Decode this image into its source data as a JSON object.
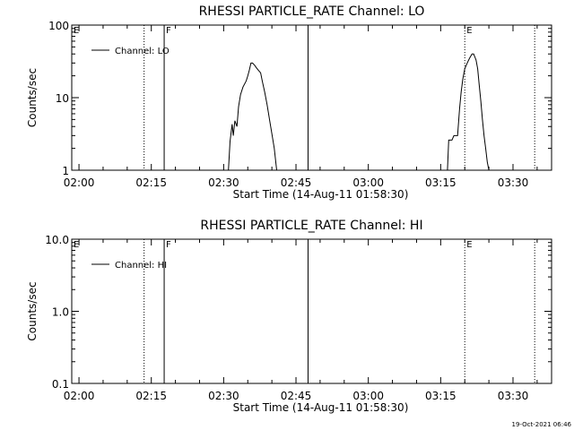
{
  "footer": {
    "timestamp": "19-Oct-2021 06:46"
  },
  "chart_data": [
    {
      "type": "line",
      "title": "RHESSI PARTICLE_RATE Channel: LO",
      "xlabel": "Start Time (14-Aug-11 01:58:30)",
      "ylabel": "Counts/sec",
      "yscale": "log",
      "xlim": [
        "01:58:30",
        "03:38:00"
      ],
      "ylim": [
        1,
        100
      ],
      "xticks": [
        "02:00",
        "02:15",
        "02:30",
        "02:45",
        "03:00",
        "03:15",
        "03:30"
      ],
      "yticks": [
        "1",
        "10",
        "100"
      ],
      "legend": {
        "position": "top-left",
        "entries": [
          "Channel: LO"
        ]
      },
      "series": [
        {
          "name": "Channel: LO",
          "segments": [
            [
              [
                "02:31:00",
                1.0
              ],
              [
                "02:31:20",
                2.5
              ],
              [
                "02:31:45",
                4.3
              ],
              [
                "02:32:00",
                3.0
              ],
              [
                "02:32:20",
                4.8
              ],
              [
                "02:32:45",
                4.0
              ],
              [
                "02:33:05",
                7.5
              ],
              [
                "02:33:30",
                11
              ],
              [
                "02:34:00",
                14
              ],
              [
                "02:34:40",
                17
              ],
              [
                "02:35:00",
                20
              ],
              [
                "02:35:20",
                24
              ],
              [
                "02:35:40",
                30
              ],
              [
                "02:36:00",
                30
              ],
              [
                "02:36:25",
                28
              ],
              [
                "02:36:45",
                26
              ],
              [
                "02:37:10",
                24
              ],
              [
                "02:37:40",
                22
              ],
              [
                "02:38:00",
                17
              ],
              [
                "02:38:30",
                12
              ],
              [
                "02:39:00",
                8
              ],
              [
                "02:39:30",
                5
              ],
              [
                "02:40:00",
                3.2
              ],
              [
                "02:40:30",
                2.0
              ],
              [
                "02:41:00",
                1.0
              ]
            ],
            [
              [
                "03:16:25",
                1.0
              ],
              [
                "03:16:40",
                2.6
              ],
              [
                "03:17:20",
                2.6
              ],
              [
                "03:17:45",
                3.0
              ],
              [
                "03:18:30",
                3.0
              ],
              [
                "03:18:55",
                7
              ],
              [
                "03:19:15",
                12
              ],
              [
                "03:19:35",
                18
              ],
              [
                "03:20:00",
                25
              ],
              [
                "03:20:30",
                30
              ],
              [
                "03:21:00",
                35
              ],
              [
                "03:21:30",
                40
              ],
              [
                "03:21:50",
                40
              ],
              [
                "03:22:20",
                33
              ],
              [
                "03:22:40",
                25
              ],
              [
                "03:23:00",
                15
              ],
              [
                "03:23:20",
                9
              ],
              [
                "03:23:40",
                5
              ],
              [
                "03:24:00",
                3
              ],
              [
                "03:24:20",
                2
              ],
              [
                "03:24:40",
                1.3
              ],
              [
                "03:25:00",
                1.0
              ]
            ]
          ]
        }
      ],
      "event_lines": [
        {
          "time": "02:13:30",
          "style": "dotted",
          "label": ""
        },
        {
          "time": "02:17:40",
          "style": "solid",
          "label": "F"
        },
        {
          "time": "02:47:30",
          "style": "solid",
          "label": ""
        },
        {
          "time": "03:20:00",
          "style": "dotted",
          "label": "E"
        },
        {
          "time": "03:34:30",
          "style": "dotted",
          "label": ""
        }
      ],
      "left_edge_label": "E"
    },
    {
      "type": "line",
      "title": "RHESSI PARTICLE_RATE Channel: HI",
      "xlabel": "Start Time (14-Aug-11 01:58:30)",
      "ylabel": "Counts/sec",
      "yscale": "log",
      "xlim": [
        "01:58:30",
        "03:38:00"
      ],
      "ylim": [
        0.1,
        10.0
      ],
      "xticks": [
        "02:00",
        "02:15",
        "02:30",
        "02:45",
        "03:00",
        "03:15",
        "03:30"
      ],
      "yticks": [
        "0.1",
        "1.0",
        "10.0"
      ],
      "legend": {
        "position": "top-left",
        "entries": [
          "Channel: HI"
        ]
      },
      "series": [
        {
          "name": "Channel: HI",
          "segments": []
        }
      ],
      "event_lines": [
        {
          "time": "02:13:30",
          "style": "dotted",
          "label": ""
        },
        {
          "time": "02:17:40",
          "style": "solid",
          "label": "F"
        },
        {
          "time": "02:47:30",
          "style": "solid",
          "label": ""
        },
        {
          "time": "03:20:00",
          "style": "dotted",
          "label": "E"
        },
        {
          "time": "03:34:30",
          "style": "dotted",
          "label": ""
        }
      ],
      "left_edge_label": "E"
    }
  ]
}
